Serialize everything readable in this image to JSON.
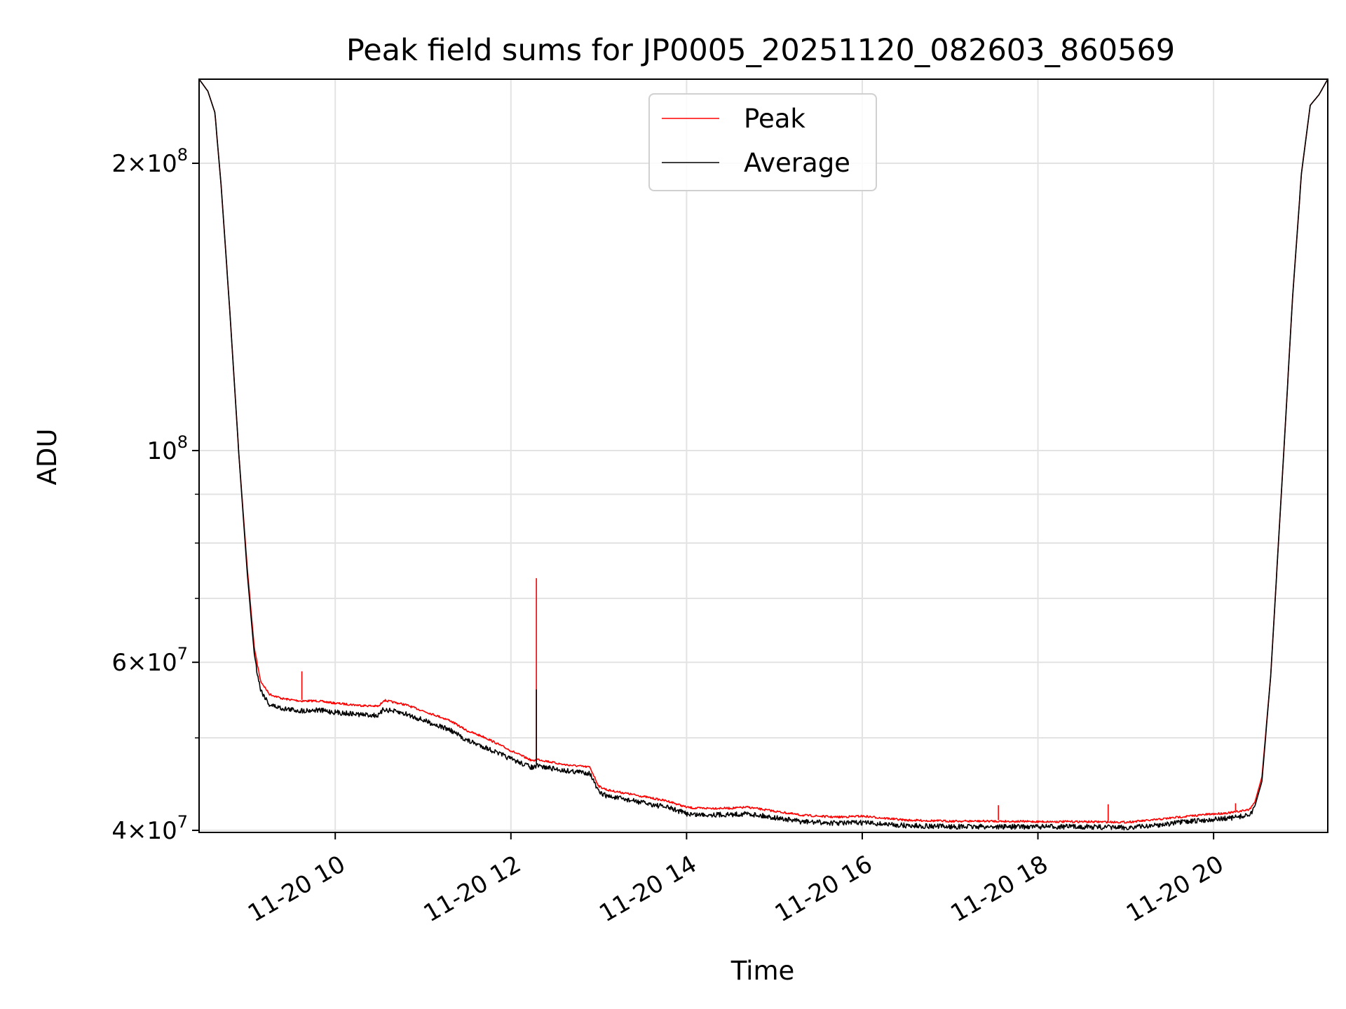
{
  "chart_data": {
    "type": "line",
    "title": "Peak field sums for JP0005_20251120_082603_860569",
    "xlabel": "Time",
    "ylabel": "ADU",
    "yscale": "log",
    "xlim": [
      8.45,
      21.3
    ],
    "ylim": [
      39800000,
      245000000
    ],
    "grid": true,
    "legend_position": "upper center",
    "x_ticks": [
      {
        "value": 10,
        "label": "11-20 10"
      },
      {
        "value": 12,
        "label": "11-20 12"
      },
      {
        "value": 14,
        "label": "11-20 14"
      },
      {
        "value": 16,
        "label": "11-20 16"
      },
      {
        "value": 18,
        "label": "11-20 18"
      },
      {
        "value": 20,
        "label": "11-20 20"
      }
    ],
    "y_major_ticks": [
      {
        "value": 40000000,
        "mantissa": "4",
        "exponent": "7"
      },
      {
        "value": 60000000,
        "mantissa": "6",
        "exponent": "7"
      },
      {
        "value": 100000000,
        "mantissa": "",
        "exponent": "8"
      },
      {
        "value": 200000000,
        "mantissa": "2",
        "exponent": "8"
      }
    ],
    "y_minor_ticks": [
      50000000,
      70000000,
      80000000,
      90000000
    ],
    "x_unit": "hours on 11-20 (local time)",
    "series": [
      {
        "name": "Peak",
        "color": "#ff0000",
        "x": [
          8.45,
          8.55,
          8.63,
          8.7,
          8.8,
          8.9,
          9.0,
          9.08,
          9.15,
          9.25,
          9.4,
          9.6,
          9.8,
          10.0,
          10.3,
          10.5,
          10.55,
          10.8,
          11.0,
          11.3,
          11.5,
          11.7,
          11.85,
          12.0,
          12.25,
          12.3,
          12.6,
          12.9,
          13.0,
          13.1,
          13.4,
          13.8,
          14.0,
          14.1,
          14.5,
          14.7,
          15.0,
          15.3,
          15.7,
          16.0,
          16.5,
          17.0,
          17.5,
          18.0,
          18.5,
          19.0,
          19.3,
          19.6,
          19.9,
          20.2,
          20.4,
          20.47,
          20.55,
          20.65,
          20.8,
          20.9,
          21.0,
          21.1,
          21.2,
          21.3
        ],
        "y": [
          245000000,
          238000000,
          226000000,
          190000000,
          140000000,
          100000000,
          75000000,
          62000000,
          57500000,
          55700000,
          55100000,
          54800000,
          54800000,
          54500000,
          54200000,
          54100000,
          54900000,
          54300000,
          53500000,
          52300000,
          51000000,
          50200000,
          49400000,
          48600000,
          47400000,
          47600000,
          47000000,
          46700000,
          44600000,
          44200000,
          43700000,
          43000000,
          42400000,
          42300000,
          42300000,
          42400000,
          42000000,
          41600000,
          41400000,
          41500000,
          41100000,
          41000000,
          41000000,
          40950000,
          40950000,
          40900000,
          41100000,
          41400000,
          41650000,
          41850000,
          42150000,
          42800000,
          45500000,
          58000000,
          100000000,
          145000000,
          195000000,
          230000000,
          236000000,
          245000000
        ]
      },
      {
        "name": "Average",
        "color": "#000000",
        "x": [
          8.45,
          8.55,
          8.63,
          8.7,
          8.8,
          8.9,
          9.0,
          9.08,
          9.15,
          9.25,
          9.4,
          9.6,
          9.8,
          10.0,
          10.3,
          10.5,
          10.55,
          10.8,
          11.0,
          11.3,
          11.5,
          11.7,
          11.85,
          12.0,
          12.25,
          12.3,
          12.6,
          12.9,
          13.0,
          13.1,
          13.4,
          13.8,
          14.0,
          14.1,
          14.5,
          14.7,
          15.0,
          15.3,
          15.7,
          16.0,
          16.5,
          17.0,
          17.5,
          18.0,
          18.5,
          19.0,
          19.3,
          19.6,
          19.9,
          20.2,
          20.4,
          20.47,
          20.55,
          20.65,
          20.8,
          20.9,
          21.0,
          21.1,
          21.2,
          21.3
        ],
        "y": [
          245000000,
          238000000,
          226000000,
          190000000,
          140000000,
          100000000,
          74000000,
          61000000,
          56500000,
          54500000,
          54000000,
          53700000,
          53800000,
          53500000,
          53200000,
          53100000,
          53900000,
          53300000,
          52500000,
          51300000,
          50000000,
          49200000,
          48500000,
          47800000,
          46800000,
          47000000,
          46500000,
          46200000,
          44100000,
          43700000,
          43200000,
          42500000,
          41900000,
          41800000,
          41800000,
          41900000,
          41500000,
          41100000,
          40950000,
          41000000,
          40700000,
          40600000,
          40600000,
          40600000,
          40600000,
          40500000,
          40700000,
          41000000,
          41250000,
          41450000,
          41750000,
          42400000,
          45000000,
          58000000,
          100000000,
          145000000,
          195000000,
          230000000,
          236000000,
          245000000
        ]
      }
    ],
    "annotations": [
      {
        "series": "Peak",
        "type": "spike",
        "x": 9.62,
        "y": 58700000
      },
      {
        "series": "Peak",
        "type": "spike",
        "x": 12.29,
        "y": 73500000
      },
      {
        "series": "Average",
        "type": "spike",
        "x": 12.29,
        "y": 56200000
      },
      {
        "series": "Peak",
        "type": "spike",
        "x": 17.55,
        "y": 42500000
      },
      {
        "series": "Peak",
        "type": "spike",
        "x": 18.8,
        "y": 42600000
      },
      {
        "series": "Peak",
        "type": "spike",
        "x": 20.25,
        "y": 42700000
      }
    ]
  }
}
